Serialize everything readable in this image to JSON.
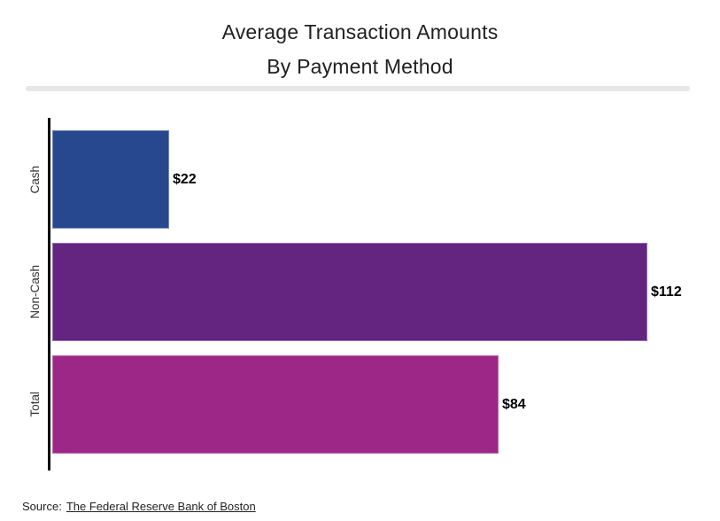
{
  "chart_data": {
    "type": "bar",
    "orientation": "horizontal",
    "title": "Average Transaction Amounts",
    "subtitle": "By Payment Method",
    "categories": [
      "Cash",
      "Non-Cash",
      "Total"
    ],
    "values": [
      22,
      112,
      84
    ],
    "value_labels": [
      "$22",
      "$112",
      "$84"
    ],
    "bar_colors": [
      "#27478F",
      "#632580",
      "#9D2787"
    ],
    "xlim": [
      0,
      120
    ],
    "grid": false,
    "legend": "none",
    "axis_color": "#0d0d0d"
  },
  "footer": {
    "source_label": "Source:",
    "source_link_text": "The Federal Reserve Bank of Boston"
  }
}
